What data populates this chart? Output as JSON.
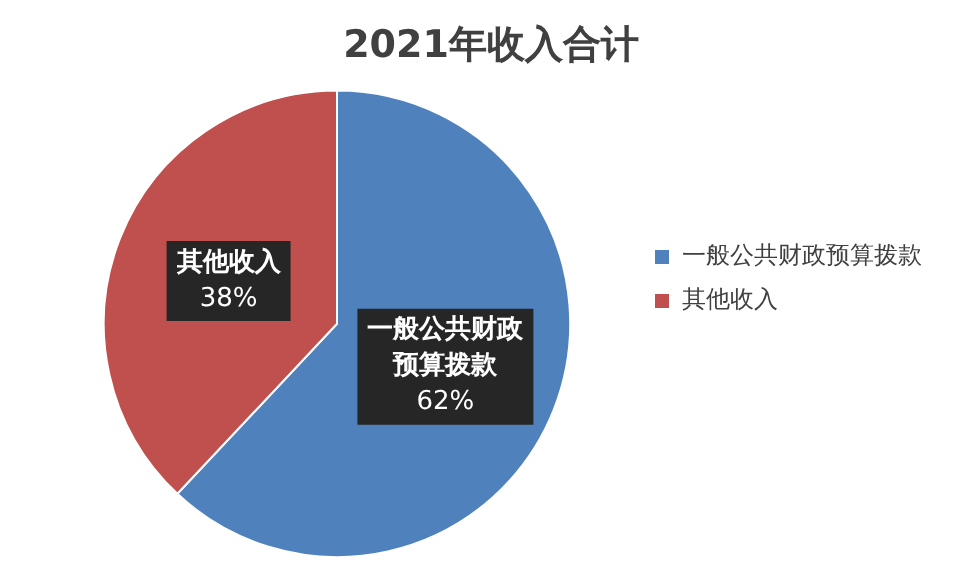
{
  "chart_data": {
    "type": "pie",
    "title": "2021年收入合计",
    "categories": [
      "一般公共财政预算拨款",
      "其他收入"
    ],
    "values": [
      62,
      38
    ],
    "colors": [
      "#4f81bd",
      "#c0504d"
    ],
    "value_labels": [
      "62%",
      "38%"
    ],
    "legend": "right"
  }
}
